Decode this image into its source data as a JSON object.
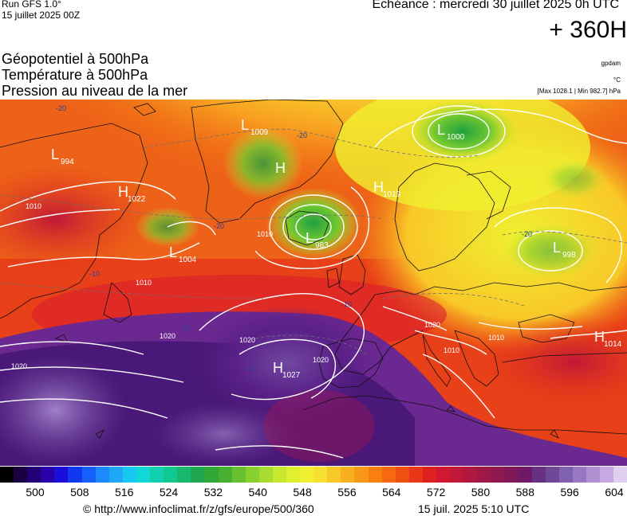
{
  "header": {
    "run": "Run GFS 1.0°",
    "run_date": "15 juillet 2025 00Z",
    "echeance": "Echéance : mercredi 30 juillet 2025 0h UTC",
    "forecast_hour": "+ 360H"
  },
  "parameters": [
    "Géopotentiel à 500hPa",
    "Température à 500hPa",
    "Pression au niveau de la mer"
  ],
  "units": {
    "geopotential": "gpdam",
    "temperature": "°C",
    "pressure_minmax": "[Max 1028.1 | Min 982.7] hPa"
  },
  "map": {
    "pressure_centers": [
      {
        "letter": "L",
        "value": "994"
      },
      {
        "letter": "H",
        "value": "1022"
      },
      {
        "letter": "L",
        "value": "1009"
      },
      {
        "letter": "H",
        "value": ""
      },
      {
        "letter": "L",
        "value": "1004"
      },
      {
        "letter": "L",
        "value": "983"
      },
      {
        "letter": "H",
        "value": "1019"
      },
      {
        "letter": "L",
        "value": "1000"
      },
      {
        "letter": "L",
        "value": "998"
      },
      {
        "letter": "H",
        "value": "1027"
      },
      {
        "letter": "H",
        "value": "1014"
      }
    ],
    "isobar_labels": [
      "1010",
      "1010",
      "1010",
      "1020",
      "1020",
      "1020",
      "1020",
      "1020",
      "1010",
      "1010"
    ],
    "temperature_labels": [
      "-20",
      "-20",
      "-20",
      "-20",
      "-10",
      "-10",
      "-10",
      "-10"
    ]
  },
  "colorscale": {
    "labels": [
      "500",
      "508",
      "516",
      "524",
      "532",
      "540",
      "548",
      "556",
      "564",
      "572",
      "580",
      "588",
      "596",
      "604"
    ],
    "colors": [
      "#000000",
      "#1a0040",
      "#230078",
      "#2a00a8",
      "#1a0ed8",
      "#1038f0",
      "#1560ff",
      "#1e88ff",
      "#20a8f8",
      "#18c8f0",
      "#10d8d8",
      "#10d0b0",
      "#10c890",
      "#18b870",
      "#20a850",
      "#30a838",
      "#48b030",
      "#68c030",
      "#88d030",
      "#a8dc30",
      "#c8e830",
      "#e0f030",
      "#f0f030",
      "#f8e030",
      "#f8c828",
      "#f8b020",
      "#f89818",
      "#f88010",
      "#f86810",
      "#f05010",
      "#e83818",
      "#e02020",
      "#d01830",
      "#c01838",
      "#b01840",
      "#a01848",
      "#901850",
      "#801858",
      "#701868",
      "#683080",
      "#704898",
      "#8060b0",
      "#9878c0",
      "#b090d0",
      "#c8a8e0",
      "#e0d0f0"
    ]
  },
  "footer": {
    "copyright": "© http://www.infoclimat.fr/z/gfs/europe/500/360",
    "timestamp": "15 juil. 2025  5:10 UTC"
  }
}
